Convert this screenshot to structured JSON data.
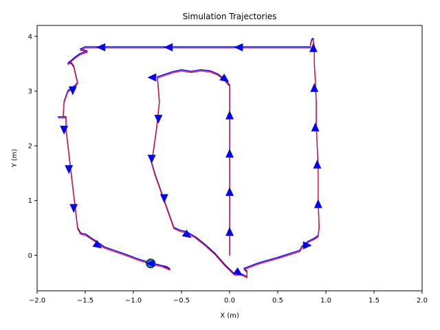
{
  "chart_data": {
    "type": "line",
    "title": "Simulation Trajectories",
    "xlabel": "X (m)",
    "ylabel": "Y (m)",
    "xlim": [
      -2.0,
      2.0
    ],
    "ylim": [
      -0.65,
      4.2
    ],
    "xticks": [
      -2.0,
      -1.5,
      -1.0,
      -0.5,
      0.0,
      0.5,
      1.0,
      1.5,
      2.0
    ],
    "xtick_labels": [
      "−2.0",
      "−1.5",
      "−1.0",
      "−0.5",
      "0.0",
      "0.5",
      "1.0",
      "1.5",
      "2.0"
    ],
    "yticks": [
      0,
      1,
      2,
      3,
      4
    ],
    "ytick_labels": [
      "0",
      "1",
      "2",
      "3",
      "4"
    ],
    "grid": false,
    "colors": {
      "reference": "#0000ff",
      "actual": "#dc143c",
      "arrow": "#0000ff",
      "end_marker": "#1f77b4"
    },
    "series": [
      {
        "color": "#0000ff",
        "x": [
          0.0,
          0.0,
          0.0,
          0.0,
          0.0,
          0.0,
          0.0,
          -0.05,
          -0.12,
          -0.2,
          -0.3,
          -0.4,
          -0.5,
          -0.6,
          -0.7,
          -0.75,
          -0.73,
          -0.76,
          -0.8,
          -0.82,
          -0.78,
          -0.74,
          -0.7,
          -0.66,
          -0.62,
          -0.58,
          -0.52,
          -0.45,
          -0.35,
          -0.25,
          -0.15,
          -0.05,
          0.05,
          0.12,
          0.18,
          0.18,
          0.15,
          0.3,
          0.5,
          0.73,
          0.75,
          0.82,
          0.88,
          0.92,
          0.93,
          0.92,
          0.92,
          0.91,
          0.9,
          0.9,
          0.89,
          0.88,
          0.88,
          0.87,
          0.87,
          0.86,
          0.85,
          0.84,
          0.84,
          0.8,
          0.72,
          0.55,
          0.3,
          0.0,
          -0.3,
          -0.6,
          -0.9,
          -1.2,
          -1.5,
          -1.55,
          -1.48,
          -1.55,
          -1.6,
          -1.68,
          -1.65,
          -1.62,
          -1.58,
          -1.6,
          -1.68,
          -1.72,
          -1.73,
          -1.78,
          -1.7,
          -1.7,
          -1.68,
          -1.66,
          -1.64,
          -1.62,
          -1.6,
          -1.58,
          -1.55,
          -1.52,
          -1.5,
          -1.45,
          -1.38,
          -1.3,
          -1.2,
          -1.1,
          -0.95,
          -0.82,
          -0.75,
          -0.65,
          -0.62,
          -0.7,
          -0.82
        ],
        "y": [
          0.0,
          0.5,
          1.0,
          1.5,
          2.0,
          2.5,
          3.1,
          3.2,
          3.3,
          3.36,
          3.38,
          3.35,
          3.38,
          3.34,
          3.28,
          3.25,
          2.8,
          2.3,
          1.8,
          1.75,
          1.5,
          1.3,
          1.1,
          0.9,
          0.7,
          0.5,
          0.45,
          0.42,
          0.32,
          0.18,
          0.02,
          -0.18,
          -0.35,
          -0.35,
          -0.4,
          -0.3,
          -0.25,
          -0.15,
          -0.05,
          0.08,
          0.15,
          0.25,
          0.3,
          0.35,
          0.5,
          1.0,
          1.6,
          2.0,
          2.4,
          2.8,
          3.2,
          3.5,
          3.8,
          3.9,
          3.95,
          3.95,
          3.92,
          3.85,
          3.8,
          3.8,
          3.8,
          3.8,
          3.8,
          3.8,
          3.8,
          3.8,
          3.8,
          3.8,
          3.8,
          3.76,
          3.72,
          3.68,
          3.62,
          3.5,
          3.52,
          3.45,
          3.15,
          3.1,
          3.0,
          2.8,
          2.52,
          2.52,
          2.52,
          2.3,
          2.0,
          1.7,
          1.4,
          1.1,
          0.8,
          0.5,
          0.4,
          0.38,
          0.38,
          0.32,
          0.24,
          0.14,
          0.08,
          0.02,
          -0.08,
          -0.15,
          -0.18,
          -0.22,
          -0.26,
          -0.2,
          -0.15
        ]
      },
      {
        "color": "#dc143c",
        "x": [
          0.0,
          0.0,
          0.0,
          0.0,
          0.0,
          0.0,
          0.0,
          -0.05,
          -0.12,
          -0.2,
          -0.3,
          -0.4,
          -0.5,
          -0.6,
          -0.7,
          -0.75,
          -0.73,
          -0.76,
          -0.8,
          -0.82,
          -0.78,
          -0.74,
          -0.7,
          -0.66,
          -0.62,
          -0.58,
          -0.52,
          -0.45,
          -0.35,
          -0.25,
          -0.15,
          -0.05,
          0.05,
          0.12,
          0.18,
          0.18,
          0.15,
          0.3,
          0.5,
          0.73,
          0.75,
          0.82,
          0.88,
          0.92,
          0.93,
          0.92,
          0.92,
          0.91,
          0.9,
          0.9,
          0.89,
          0.88,
          0.88,
          0.87,
          0.87,
          0.86,
          0.85,
          0.84,
          0.84,
          0.8,
          0.72,
          0.55,
          0.3,
          0.0,
          -0.3,
          -0.6,
          -0.9,
          -1.2,
          -1.5,
          -1.55,
          -1.48,
          -1.55,
          -1.6,
          -1.68,
          -1.65,
          -1.62,
          -1.58,
          -1.6,
          -1.68,
          -1.72,
          -1.73,
          -1.78,
          -1.7,
          -1.7,
          -1.68,
          -1.66,
          -1.64,
          -1.62,
          -1.6,
          -1.58,
          -1.55,
          -1.52,
          -1.5,
          -1.45,
          -1.38,
          -1.3,
          -1.2,
          -1.1,
          -0.95,
          -0.82,
          -0.75,
          -0.65,
          -0.62,
          -0.7,
          -0.82
        ],
        "y": [
          0.0,
          0.5,
          1.0,
          1.5,
          2.0,
          2.5,
          3.1,
          3.2,
          3.3,
          3.36,
          3.38,
          3.35,
          3.38,
          3.34,
          3.28,
          3.25,
          2.8,
          2.3,
          1.8,
          1.75,
          1.5,
          1.3,
          1.1,
          0.9,
          0.7,
          0.5,
          0.45,
          0.42,
          0.32,
          0.18,
          0.02,
          -0.18,
          -0.35,
          -0.35,
          -0.4,
          -0.3,
          -0.25,
          -0.15,
          -0.05,
          0.08,
          0.15,
          0.25,
          0.3,
          0.35,
          0.5,
          1.0,
          1.6,
          2.0,
          2.4,
          2.8,
          3.2,
          3.5,
          3.8,
          3.9,
          3.95,
          3.95,
          3.92,
          3.85,
          3.8,
          3.8,
          3.8,
          3.8,
          3.8,
          3.8,
          3.8,
          3.8,
          3.8,
          3.8,
          3.8,
          3.76,
          3.72,
          3.68,
          3.62,
          3.5,
          3.52,
          3.45,
          3.15,
          3.1,
          3.0,
          2.8,
          2.52,
          2.52,
          2.52,
          2.3,
          2.0,
          1.7,
          1.4,
          1.1,
          0.8,
          0.5,
          0.4,
          0.38,
          0.38,
          0.32,
          0.24,
          0.14,
          0.08,
          0.02,
          -0.08,
          -0.15,
          -0.18,
          -0.22,
          -0.26,
          -0.2,
          -0.15
        ]
      }
    ],
    "arrows": [
      {
        "x": 0.0,
        "y": 0.42,
        "dir": "up"
      },
      {
        "x": 0.0,
        "y": 1.15,
        "dir": "up"
      },
      {
        "x": 0.0,
        "y": 1.85,
        "dir": "up"
      },
      {
        "x": 0.0,
        "y": 2.55,
        "dir": "up"
      },
      {
        "x": -0.05,
        "y": 3.22,
        "dir": "down-right"
      },
      {
        "x": -0.8,
        "y": 3.25,
        "dir": "left"
      },
      {
        "x": -0.74,
        "y": 2.5,
        "dir": "down"
      },
      {
        "x": -0.81,
        "y": 1.77,
        "dir": "down"
      },
      {
        "x": -0.68,
        "y": 1.05,
        "dir": "down"
      },
      {
        "x": -0.44,
        "y": 0.37,
        "dir": "down-right"
      },
      {
        "x": 0.09,
        "y": -0.32,
        "dir": "down-right"
      },
      {
        "x": 0.8,
        "y": 0.18,
        "dir": "right"
      },
      {
        "x": 0.92,
        "y": 0.93,
        "dir": "up"
      },
      {
        "x": 0.91,
        "y": 1.65,
        "dir": "up"
      },
      {
        "x": 0.89,
        "y": 2.33,
        "dir": "up"
      },
      {
        "x": 0.88,
        "y": 3.05,
        "dir": "up"
      },
      {
        "x": 0.87,
        "y": 3.78,
        "dir": "up"
      },
      {
        "x": 0.1,
        "y": 3.8,
        "dir": "left"
      },
      {
        "x": -0.63,
        "y": 3.8,
        "dir": "left"
      },
      {
        "x": -1.33,
        "y": 3.8,
        "dir": "left"
      },
      {
        "x": -1.63,
        "y": 3.02,
        "dir": "down"
      },
      {
        "x": -1.72,
        "y": 2.3,
        "dir": "down"
      },
      {
        "x": -1.67,
        "y": 1.58,
        "dir": "down"
      },
      {
        "x": -1.62,
        "y": 0.87,
        "dir": "down"
      },
      {
        "x": -1.37,
        "y": 0.18,
        "dir": "down-right"
      }
    ],
    "end_point": {
      "x": -0.82,
      "y": -0.15
    }
  }
}
